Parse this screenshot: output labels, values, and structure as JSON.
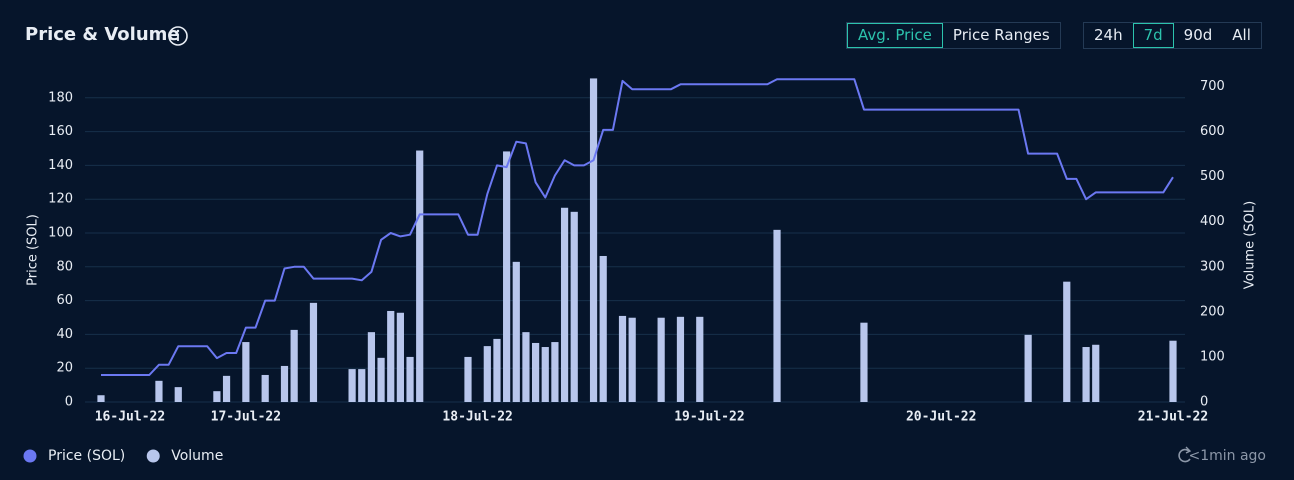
{
  "header": {
    "title": "Price & Volume"
  },
  "controls": {
    "metric": [
      {
        "label": "Avg. Price",
        "active": true
      },
      {
        "label": "Price Ranges",
        "active": false
      }
    ],
    "range": [
      {
        "label": "24h",
        "active": false
      },
      {
        "label": "7d",
        "active": true
      },
      {
        "label": "90d",
        "active": false
      },
      {
        "label": "All",
        "active": false
      }
    ]
  },
  "updated": "<1min ago",
  "chart_data": {
    "type": "combo",
    "ylabel": "Price (SOL)",
    "y2label": "Volume (SOL)",
    "grid": true,
    "legend": "bottom-left",
    "categories": [
      null,
      null,
      null,
      "16-Jul-22",
      null,
      null,
      null,
      null,
      null,
      null,
      null,
      null,
      null,
      null,
      null,
      "17-Jul-22",
      null,
      null,
      null,
      null,
      null,
      null,
      null,
      null,
      null,
      null,
      null,
      null,
      null,
      null,
      null,
      null,
      null,
      null,
      null,
      null,
      null,
      null,
      null,
      "18-Jul-22",
      null,
      null,
      null,
      null,
      null,
      null,
      null,
      null,
      null,
      null,
      null,
      null,
      null,
      null,
      null,
      null,
      null,
      null,
      null,
      null,
      null,
      null,
      null,
      "19-Jul-22",
      null,
      null,
      null,
      null,
      null,
      null,
      null,
      null,
      null,
      null,
      null,
      null,
      null,
      null,
      null,
      null,
      null,
      null,
      null,
      null,
      null,
      null,
      null,
      "20-Jul-22",
      null,
      null,
      null,
      null,
      null,
      null,
      null,
      null,
      null,
      null,
      null,
      null,
      null,
      null,
      null,
      null,
      null,
      null,
      null,
      null,
      null,
      null,
      null,
      "21-Jul-22"
    ],
    "ylim": [
      0,
      200
    ],
    "yticks": [
      0,
      20,
      40,
      60,
      80,
      100,
      120,
      140,
      160,
      180
    ],
    "y2lim": [
      0,
      750
    ],
    "y2ticks": [
      0,
      100,
      200,
      300,
      400,
      500,
      600,
      700
    ],
    "series": [
      {
        "name": "Price (SOL)",
        "type": "line",
        "color": "#6b78f2",
        "values": [
          16,
          16,
          16,
          16,
          16,
          16,
          22,
          22,
          33,
          33,
          33,
          33,
          26,
          29,
          29,
          44,
          44,
          60,
          60,
          79,
          80,
          80,
          73,
          73,
          73,
          73,
          73,
          72,
          77,
          96,
          100,
          98,
          99,
          111,
          111,
          111,
          111,
          111,
          99,
          99,
          123,
          140,
          139,
          154,
          153,
          130,
          121,
          134,
          143,
          140,
          140,
          143,
          161,
          161,
          190,
          185,
          185,
          185,
          185,
          185,
          188,
          188,
          188,
          188,
          188,
          188,
          188,
          188,
          188,
          188,
          191,
          191,
          191,
          191,
          191,
          191,
          191,
          191,
          191,
          173,
          173,
          173,
          173,
          173,
          173,
          173,
          173,
          173,
          173,
          173,
          173,
          173,
          173,
          173,
          173,
          173,
          147,
          147,
          147,
          147,
          132,
          132,
          120,
          124,
          124,
          124,
          124,
          124,
          124,
          124,
          124,
          133
        ]
      },
      {
        "name": "Volume",
        "type": "bar",
        "axis": "y2",
        "color": "#b8c6ec",
        "values": [
          15,
          null,
          null,
          null,
          null,
          null,
          47,
          null,
          33,
          null,
          null,
          null,
          24,
          58,
          null,
          133,
          null,
          60,
          null,
          80,
          160,
          null,
          220,
          null,
          null,
          null,
          73,
          73,
          155,
          98,
          202,
          198,
          100,
          558,
          null,
          null,
          null,
          null,
          100,
          null,
          124,
          140,
          556,
          311,
          155,
          131,
          122,
          133,
          431,
          422,
          null,
          718,
          324,
          null,
          191,
          187,
          null,
          null,
          187,
          null,
          189,
          null,
          189,
          null,
          null,
          null,
          null,
          null,
          null,
          null,
          382,
          null,
          null,
          null,
          null,
          null,
          null,
          null,
          null,
          176,
          null,
          null,
          null,
          null,
          null,
          null,
          null,
          null,
          null,
          null,
          null,
          null,
          null,
          null,
          null,
          null,
          149,
          null,
          null,
          null,
          267,
          null,
          122,
          127,
          null,
          null,
          null,
          null,
          null,
          null,
          null,
          136
        ]
      }
    ]
  }
}
